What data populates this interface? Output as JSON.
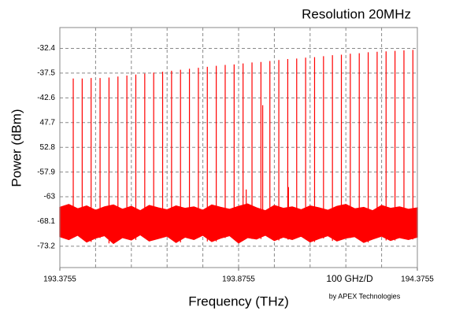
{
  "chart_data": {
    "type": "spectrum",
    "title": "Resolution 20MHz",
    "x_label": "Frequency (THz)",
    "y_label": "Power (dBm)",
    "division_label": "100 GHz/D",
    "credit": "by APEX Technologies",
    "color": "#ff0000",
    "grid": true,
    "xlim": [
      193.3755,
      194.3755
    ],
    "xticks": [
      193.3755,
      193.8755,
      194.3755
    ],
    "xgrid": [
      193.4755,
      193.5755,
      193.6755,
      193.7755,
      193.8755,
      193.9755,
      194.0755,
      194.1755,
      194.2755
    ],
    "ylim": [
      -77.6,
      -28.1
    ],
    "yticks": [
      -32.4,
      -37.5,
      -42.6,
      {
        "value": -47.7,
        "label": "47.7"
      },
      {
        "value": -52.8,
        "label": "52.8"
      },
      -57.9,
      -63,
      -68.1,
      -73.2
    ],
    "peaks": {
      "x": [
        193.413,
        193.438,
        193.463,
        193.488,
        193.513,
        193.538,
        193.563,
        193.588,
        193.613,
        193.638,
        193.663,
        193.688,
        193.713,
        193.738,
        193.763,
        193.788,
        193.813,
        193.838,
        193.863,
        193.888,
        193.913,
        193.938,
        193.963,
        193.988,
        194.013,
        194.038,
        194.063,
        194.088,
        194.113,
        194.138,
        194.163,
        194.188,
        194.213,
        194.238,
        194.263,
        194.288,
        194.313,
        194.338,
        194.363
      ],
      "values": [
        -38.6,
        -38.6,
        -38.5,
        -38.5,
        -38.4,
        -38.2,
        -38.0,
        -37.8,
        -37.6,
        -37.4,
        -37.2,
        -37.0,
        -36.8,
        -36.6,
        -36.4,
        -36.2,
        -36.0,
        -35.8,
        -35.7,
        -35.5,
        -35.3,
        -35.2,
        -35.0,
        -34.8,
        -34.6,
        -34.5,
        -34.3,
        -34.2,
        -34.0,
        -33.8,
        -33.7,
        -33.5,
        -33.4,
        -33.2,
        -33.1,
        -33.0,
        -32.9,
        -32.8,
        -32.7
      ]
    },
    "spurs": {
      "x": [
        193.8968,
        193.9429,
        194.015
      ],
      "values": [
        -61.5,
        -44.1,
        -61.0
      ]
    },
    "noise": {
      "x": [
        193.3755,
        193.4005,
        193.4255,
        193.4505,
        193.4755,
        193.5005,
        193.5255,
        193.5505,
        193.5755,
        193.6005,
        193.6255,
        193.6505,
        193.6755,
        193.7005,
        193.7255,
        193.7505,
        193.7755,
        193.8005,
        193.8255,
        193.8505,
        193.8755,
        193.9005,
        193.9255,
        193.9505,
        193.9755,
        194.0005,
        194.0255,
        194.0505,
        194.0755,
        194.1005,
        194.1255,
        194.1505,
        194.1755,
        194.2005,
        194.2255,
        194.2505,
        194.2755,
        194.3005,
        194.3255,
        194.3505,
        194.3755
      ],
      "upper": [
        -65.2,
        -64.6,
        -65.5,
        -64.9,
        -65.8,
        -65.1,
        -64.7,
        -65.6,
        -65.0,
        -65.9,
        -64.8,
        -65.3,
        -65.7,
        -64.9,
        -65.4,
        -65.1,
        -65.8,
        -64.7,
        -65.2,
        -65.6,
        -65.0,
        -64.5,
        -65.3,
        -65.9,
        -64.8,
        -65.4,
        -65.1,
        -65.7,
        -64.9,
        -65.3,
        -65.8,
        -65.0,
        -64.6,
        -65.5,
        -65.2,
        -65.9,
        -64.8,
        -65.4,
        -65.1,
        -65.6,
        -65.3
      ],
      "lower": [
        -71.2,
        -71.8,
        -70.9,
        -72.3,
        -71.5,
        -71.0,
        -72.6,
        -71.4,
        -71.9,
        -70.8,
        -72.1,
        -71.6,
        -71.1,
        -72.4,
        -71.3,
        -71.8,
        -70.9,
        -72.2,
        -71.5,
        -71.0,
        -72.5,
        -71.4,
        -71.7,
        -70.9,
        -72.0,
        -71.3,
        -71.8,
        -71.1,
        -72.3,
        -71.6,
        -71.0,
        -72.1,
        -71.5,
        -71.2,
        -72.4,
        -71.7,
        -71.1,
        -72.0,
        -71.4,
        -71.8,
        -71.3
      ]
    }
  }
}
